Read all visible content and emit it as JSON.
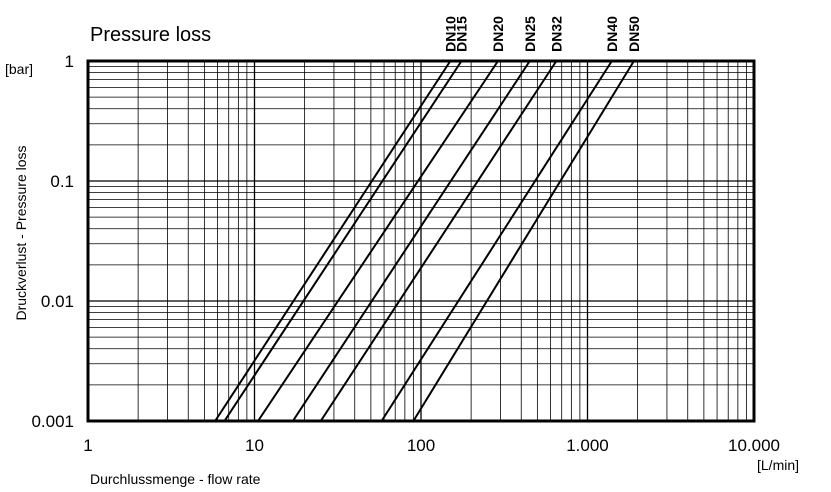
{
  "chart_data": {
    "type": "line",
    "title": "Pressure loss",
    "xlabel": "Durchlussmenge - flow rate",
    "ylabel": "Druckverlust -  Pressure loss",
    "x_unit": "[L/min]",
    "y_unit": "[bar]",
    "x_scale": "log",
    "y_scale": "log",
    "xlim": [
      1,
      10000
    ],
    "ylim": [
      0.001,
      1
    ],
    "x_ticks": [
      1,
      10,
      100,
      1000,
      10000
    ],
    "x_tick_labels": [
      "1",
      "10",
      "100",
      "1.000",
      "10.000"
    ],
    "y_ticks": [
      0.001,
      0.01,
      0.1,
      1
    ],
    "y_tick_labels": [
      "0.001",
      "0.01",
      "0.1",
      "1"
    ],
    "grid": true,
    "legend": "top",
    "series": [
      {
        "name": "DN10",
        "x": [
          5.8,
          150
        ],
        "y": [
          0.001,
          1
        ]
      },
      {
        "name": "DN15",
        "x": [
          6.6,
          175
        ],
        "y": [
          0.001,
          1
        ]
      },
      {
        "name": "DN20",
        "x": [
          10.5,
          290
        ],
        "y": [
          0.001,
          1
        ]
      },
      {
        "name": "DN25",
        "x": [
          17,
          450
        ],
        "y": [
          0.001,
          1
        ]
      },
      {
        "name": "DN32",
        "x": [
          25,
          650
        ],
        "y": [
          0.001,
          1
        ]
      },
      {
        "name": "DN40",
        "x": [
          58,
          1400
        ],
        "y": [
          0.001,
          1
        ]
      },
      {
        "name": "DN50",
        "x": [
          90,
          1900
        ],
        "y": [
          0.001,
          1
        ]
      }
    ]
  }
}
